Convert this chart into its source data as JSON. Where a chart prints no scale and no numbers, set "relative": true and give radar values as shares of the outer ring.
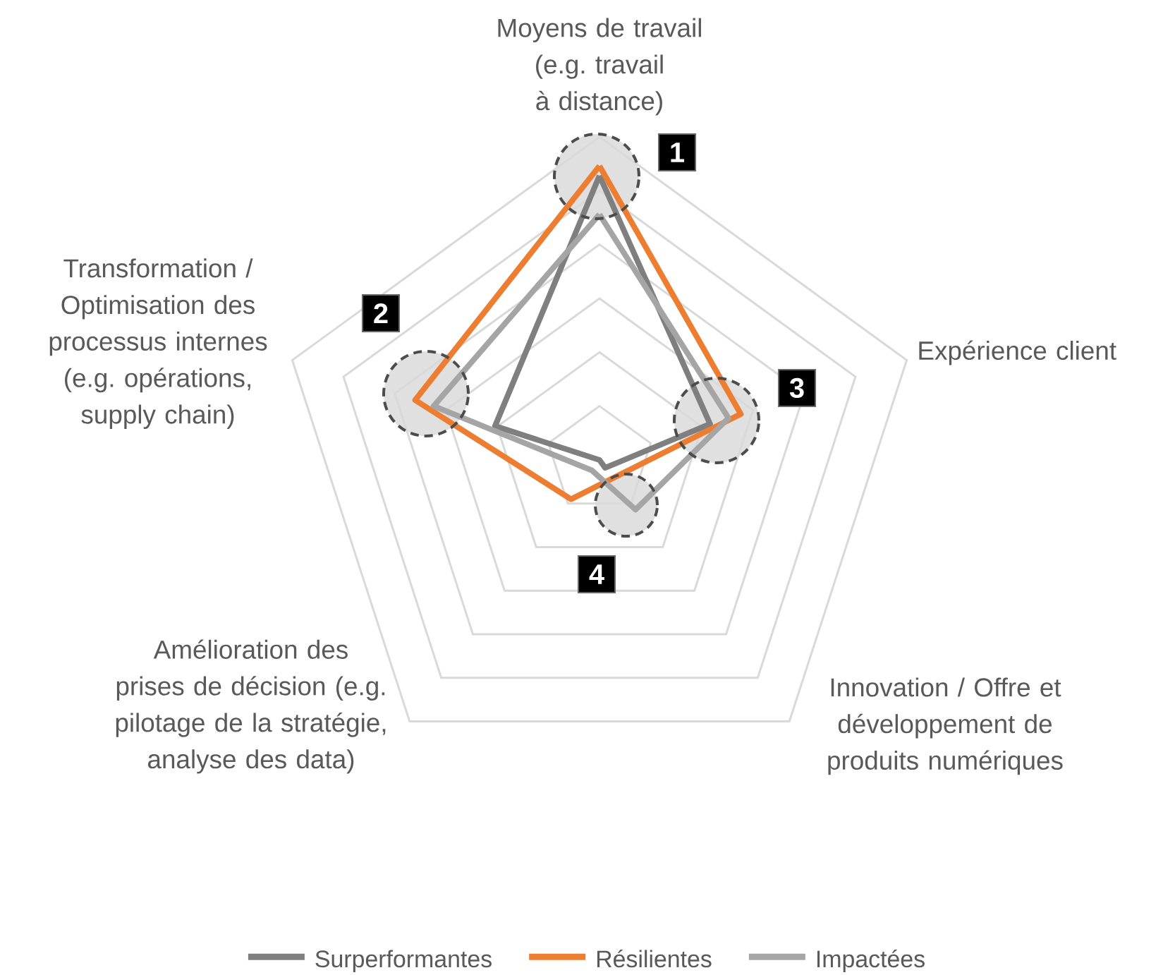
{
  "chart_data": {
    "type": "radar",
    "relative": true,
    "grid": true,
    "legend": "bottom",
    "categories": [
      "Moyens de travail (e.g. travail à distance)",
      "Expérience client",
      "Innovation / Offre et développement de produits numériques",
      "Amélioration des prises de décision (e.g. pilotage de la stratégie, analyse des data)",
      "Transformation / Optimisation des processus internes (e.g. opérations, supply chain)"
    ],
    "series": [
      {
        "name": "Surperformantes",
        "color": "#7f7f7f",
        "values": [
          0.88,
          0.36,
          0.03,
          0.0,
          0.34
        ]
      },
      {
        "name": "Résilientes",
        "color": "#ed7d31",
        "values": [
          0.91,
          0.46,
          0.07,
          0.15,
          0.6
        ]
      },
      {
        "name": "Impactées",
        "color": "#a5a5a5",
        "values": [
          0.76,
          0.42,
          0.19,
          0.04,
          0.54
        ]
      }
    ],
    "annotations": [
      "1",
      "2",
      "3",
      "4"
    ]
  }
}
